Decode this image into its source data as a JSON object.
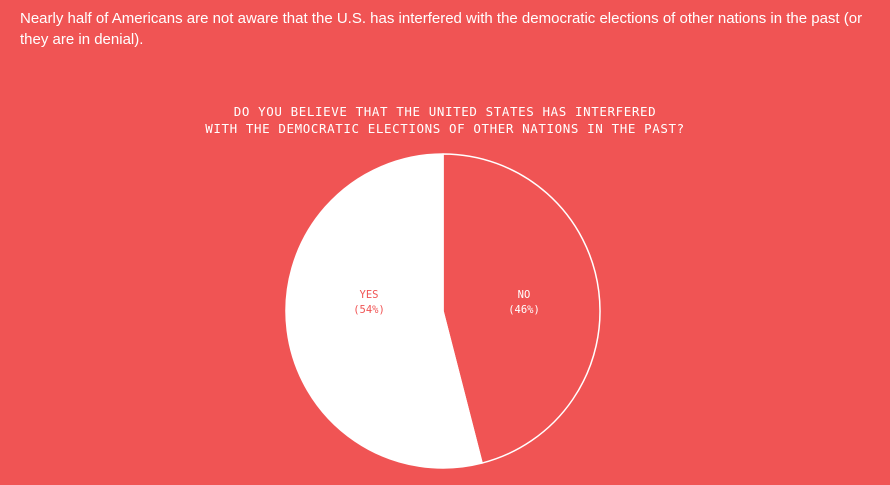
{
  "headline": "Nearly half of Americans are not aware that the U.S. has interfered with the democratic elections of other nations in the past (or they are in denial).",
  "chart_data": {
    "type": "pie",
    "title_lines": [
      "DO YOU BELIEVE THAT THE UNITED STATES HAS INTERFERED",
      "WITH THE DEMOCRATIC ELECTIONS OF OTHER NATIONS IN THE PAST?"
    ],
    "slices": [
      {
        "label": "NO",
        "value": 46,
        "value_text": "(46%)",
        "fill": "#f05454",
        "text_color": "#ffffff"
      },
      {
        "label": "YES",
        "value": 54,
        "value_text": "(54%)",
        "fill": "#ffffff",
        "text_color": "#f05454"
      }
    ],
    "start_angle": "12 o'clock",
    "direction": "clockwise",
    "legend": "none"
  },
  "colors": {
    "background": "#f05454",
    "foreground": "#ffffff"
  }
}
